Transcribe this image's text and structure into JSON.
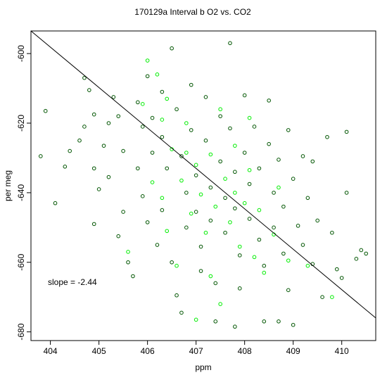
{
  "chart_data": {
    "type": "scatter",
    "title": "170129a   Interval b O2 vs. CO2",
    "xlabel": "ppm",
    "ylabel": "per meg",
    "xlim": [
      403.6,
      410.7
    ],
    "ylim": [
      -682.5,
      -593.5
    ],
    "xticks": [
      404,
      405,
      406,
      407,
      408,
      409,
      410
    ],
    "yticks": [
      -680,
      -660,
      -640,
      -620,
      -600
    ],
    "annotation": "slope =  -2.44",
    "fit_line": {
      "slope": -2.44,
      "points": [
        [
          403.6,
          -593.5
        ],
        [
          410.7,
          -676.0
        ]
      ]
    },
    "grid": false,
    "series": [
      {
        "color": "#005500",
        "points": [
          [
            403.9,
            -616.5
          ],
          [
            403.8,
            -629.5
          ],
          [
            404.1,
            -643.0
          ],
          [
            404.3,
            -632.5
          ],
          [
            404.4,
            -628.0
          ],
          [
            404.7,
            -607.0
          ],
          [
            404.8,
            -610.5
          ],
          [
            404.9,
            -617.5
          ],
          [
            404.7,
            -621.0
          ],
          [
            404.6,
            -625.0
          ],
          [
            404.9,
            -633.0
          ],
          [
            405.0,
            -639.0
          ],
          [
            404.9,
            -649.0
          ],
          [
            405.2,
            -620.0
          ],
          [
            405.1,
            -626.5
          ],
          [
            405.2,
            -635.5
          ],
          [
            405.3,
            -612.5
          ],
          [
            405.4,
            -618.0
          ],
          [
            405.5,
            -628.0
          ],
          [
            405.5,
            -645.5
          ],
          [
            405.4,
            -652.5
          ],
          [
            405.6,
            -660.0
          ],
          [
            405.7,
            -664.0
          ],
          [
            405.8,
            -614.0
          ],
          [
            405.9,
            -621.0
          ],
          [
            405.8,
            -633.0
          ],
          [
            405.9,
            -641.0
          ],
          [
            406.0,
            -606.5
          ],
          [
            406.1,
            -618.5
          ],
          [
            406.1,
            -628.5
          ],
          [
            406.0,
            -648.5
          ],
          [
            406.2,
            -655.0
          ],
          [
            406.3,
            -611.0
          ],
          [
            406.3,
            -624.0
          ],
          [
            406.4,
            -633.0
          ],
          [
            406.3,
            -645.0
          ],
          [
            406.5,
            -598.5
          ],
          [
            406.5,
            -660.0
          ],
          [
            406.6,
            -669.5
          ],
          [
            406.7,
            -674.5
          ],
          [
            406.6,
            -616.0
          ],
          [
            406.7,
            -629.5
          ],
          [
            406.8,
            -640.0
          ],
          [
            406.8,
            -650.0
          ],
          [
            406.9,
            -609.0
          ],
          [
            406.9,
            -622.0
          ],
          [
            407.0,
            -635.0
          ],
          [
            407.0,
            -645.5
          ],
          [
            407.1,
            -655.5
          ],
          [
            407.1,
            -662.5
          ],
          [
            407.2,
            -612.5
          ],
          [
            407.2,
            -625.0
          ],
          [
            407.3,
            -638.5
          ],
          [
            407.3,
            -648.0
          ],
          [
            407.4,
            -666.0
          ],
          [
            407.4,
            -677.0
          ],
          [
            407.5,
            -618.0
          ],
          [
            407.5,
            -631.0
          ],
          [
            407.6,
            -641.5
          ],
          [
            407.6,
            -651.5
          ],
          [
            407.7,
            -597.0
          ],
          [
            407.7,
            -621.5
          ],
          [
            407.8,
            -634.0
          ],
          [
            407.8,
            -644.5
          ],
          [
            407.9,
            -658.0
          ],
          [
            407.9,
            -667.5
          ],
          [
            408.0,
            -612.0
          ],
          [
            408.0,
            -628.5
          ],
          [
            408.1,
            -637.5
          ],
          [
            408.1,
            -647.5
          ],
          [
            408.2,
            -621.0
          ],
          [
            408.3,
            -633.0
          ],
          [
            408.3,
            -653.5
          ],
          [
            408.4,
            -661.0
          ],
          [
            408.4,
            -677.0
          ],
          [
            408.5,
            -613.5
          ],
          [
            408.5,
            -626.0
          ],
          [
            408.6,
            -640.0
          ],
          [
            408.6,
            -650.0
          ],
          [
            408.7,
            -630.5
          ],
          [
            408.8,
            -644.0
          ],
          [
            408.8,
            -657.5
          ],
          [
            408.9,
            -622.0
          ],
          [
            408.9,
            -668.0
          ],
          [
            409.0,
            -636.0
          ],
          [
            409.1,
            -649.5
          ],
          [
            409.2,
            -629.5
          ],
          [
            409.2,
            -655.0
          ],
          [
            409.3,
            -641.5
          ],
          [
            409.4,
            -660.5
          ],
          [
            409.4,
            -631.0
          ],
          [
            409.5,
            -648.0
          ],
          [
            409.6,
            -670.0
          ],
          [
            409.7,
            -624.0
          ],
          [
            409.8,
            -651.5
          ],
          [
            409.9,
            -662.0
          ],
          [
            410.0,
            -664.5
          ],
          [
            410.1,
            -640.0
          ],
          [
            410.1,
            -622.5
          ],
          [
            410.3,
            -659.0
          ],
          [
            410.4,
            -656.5
          ],
          [
            410.5,
            -657.5
          ],
          [
            409.0,
            -678.0
          ],
          [
            408.7,
            -677.0
          ],
          [
            407.8,
            -678.5
          ]
        ]
      },
      {
        "color": "#00ee00",
        "points": [
          [
            405.6,
            -657.0
          ],
          [
            405.9,
            -614.5
          ],
          [
            406.0,
            -602.0
          ],
          [
            406.1,
            -637.0
          ],
          [
            406.2,
            -606.0
          ],
          [
            406.3,
            -619.0
          ],
          [
            406.3,
            -641.5
          ],
          [
            406.4,
            -651.0
          ],
          [
            406.4,
            -613.0
          ],
          [
            406.5,
            -627.5
          ],
          [
            406.6,
            -661.0
          ],
          [
            406.7,
            -636.5
          ],
          [
            406.8,
            -620.0
          ],
          [
            406.9,
            -646.0
          ],
          [
            407.0,
            -632.0
          ],
          [
            407.0,
            -676.5
          ],
          [
            407.1,
            -640.5
          ],
          [
            407.2,
            -651.5
          ],
          [
            407.3,
            -629.0
          ],
          [
            407.3,
            -664.0
          ],
          [
            407.4,
            -644.0
          ],
          [
            407.5,
            -672.0
          ],
          [
            407.6,
            -636.0
          ],
          [
            407.7,
            -648.5
          ],
          [
            407.8,
            -640.0
          ],
          [
            407.8,
            -626.5
          ],
          [
            407.9,
            -655.5
          ],
          [
            408.0,
            -643.0
          ],
          [
            408.1,
            -633.5
          ],
          [
            408.2,
            -658.5
          ],
          [
            408.3,
            -645.0
          ],
          [
            408.4,
            -663.0
          ],
          [
            408.6,
            -652.0
          ],
          [
            408.7,
            -638.5
          ],
          [
            408.9,
            -659.5
          ],
          [
            409.3,
            -661.0
          ],
          [
            409.8,
            -670.0
          ],
          [
            408.1,
            -618.5
          ],
          [
            407.5,
            -616.0
          ],
          [
            406.8,
            -628.5
          ]
        ]
      }
    ]
  }
}
